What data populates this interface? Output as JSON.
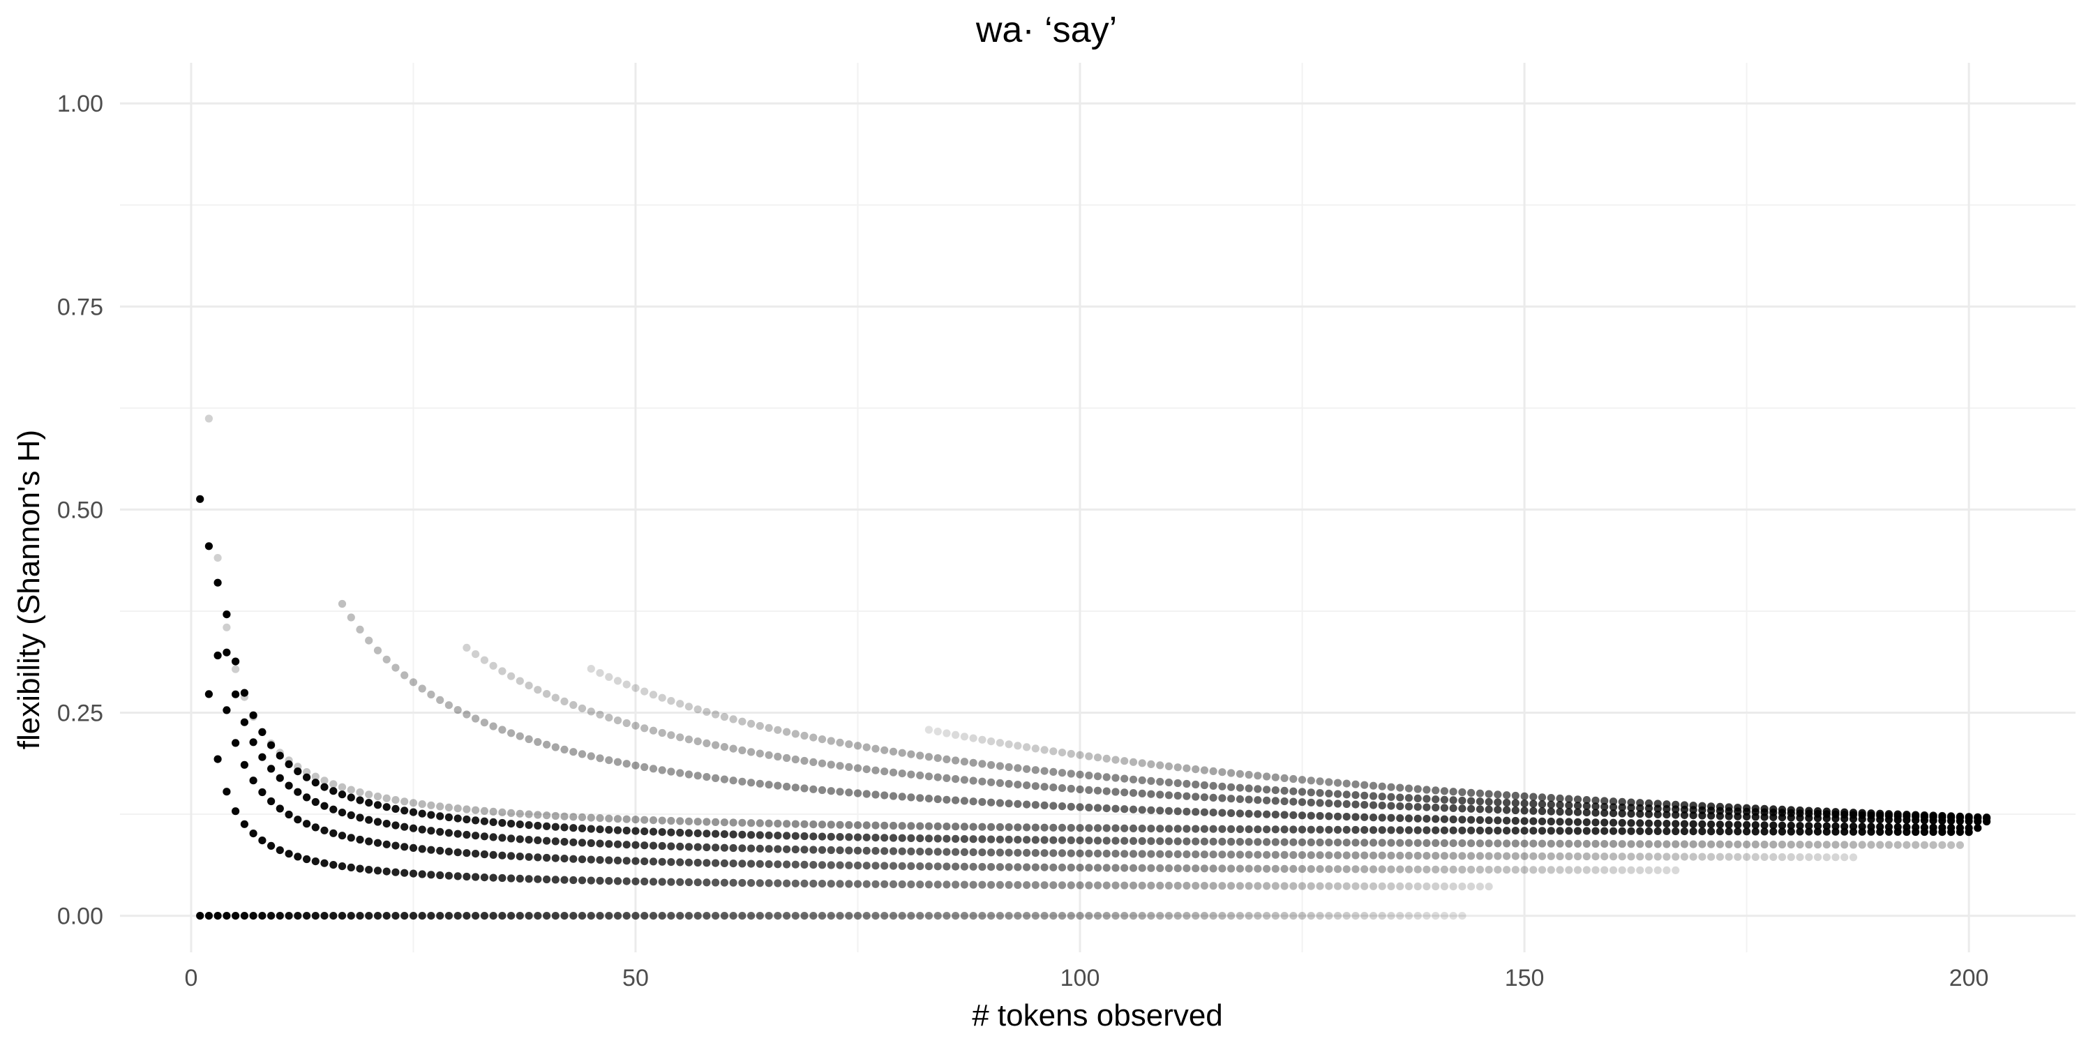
{
  "chart_data": {
    "type": "scatter",
    "title": "wa· ‘say’",
    "xlabel": "# tokens observed",
    "ylabel": "flexibility (Shannon's H)",
    "xlim": [
      -8,
      212
    ],
    "ylim": [
      -0.045,
      1.05
    ],
    "x_ticks": [
      0,
      50,
      100,
      150,
      200
    ],
    "y_ticks": [
      0.0,
      0.25,
      0.5,
      0.75,
      1.0
    ],
    "x_tick_labels": [
      "0",
      "50",
      "100",
      "150",
      "200"
    ],
    "y_tick_labels": [
      "0.00",
      "0.25",
      "0.50",
      "0.75",
      "1.00"
    ],
    "x_minor_ticks": [
      25,
      75,
      125,
      175
    ],
    "y_minor_ticks": [
      0.125,
      0.375,
      0.625,
      0.875
    ],
    "grid": true,
    "legend": "none",
    "point_color": "#000000",
    "series": [
      {
        "type": "constant",
        "start": 1,
        "end": 143,
        "value": 0.0,
        "start_opacity": 1.0,
        "end_opacity": 0.12
      },
      {
        "type": "decay",
        "start": 1,
        "end": 146,
        "first_value": 0.513,
        "last_value": 0.036,
        "start_opacity": 1.0,
        "end_opacity": 0.15
      },
      {
        "type": "decay",
        "start": 2,
        "end": 167,
        "first_value": 0.455,
        "last_value": 0.056,
        "start_opacity": 1.0,
        "end_opacity": 0.15
      },
      {
        "type": "decay",
        "start": 3,
        "end": 187,
        "first_value": 0.41,
        "last_value": 0.072,
        "start_opacity": 1.0,
        "end_opacity": 0.15
      },
      {
        "type": "decay",
        "start": 4,
        "end": 199,
        "first_value": 0.371,
        "last_value": 0.087,
        "start_opacity": 1.0,
        "end_opacity": 0.25
      },
      {
        "type": "decay",
        "start": 2,
        "end": 200,
        "first_value": 0.612,
        "last_value": 0.103,
        "start_opacity": 0.18,
        "end_opacity": 1.0
      },
      {
        "type": "decay",
        "start": 17,
        "end": 201,
        "first_value": 0.384,
        "last_value": 0.108,
        "start_opacity": 0.25,
        "end_opacity": 1.0
      },
      {
        "type": "decay",
        "start": 31,
        "end": 202,
        "first_value": 0.33,
        "last_value": 0.116,
        "start_opacity": 0.18,
        "end_opacity": 1.0
      },
      {
        "type": "decay",
        "start": 45,
        "end": 202,
        "first_value": 0.304,
        "last_value": 0.12,
        "start_opacity": 0.15,
        "end_opacity": 1.0
      },
      {
        "type": "decay",
        "start": 83,
        "end": 202,
        "first_value": 0.229,
        "last_value": 0.121,
        "start_opacity": 0.12,
        "end_opacity": 1.0
      }
    ]
  }
}
